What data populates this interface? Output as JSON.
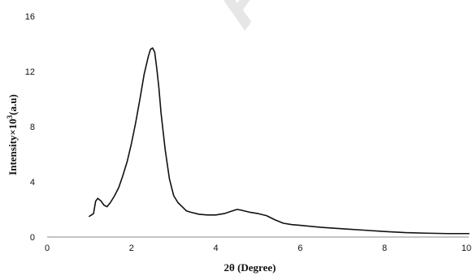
{
  "chart_data": {
    "type": "line",
    "title": "",
    "xlabel": "2θ (Degree)",
    "ylabel_main": "Intensity×10",
    "ylabel_sup": "3",
    "ylabel_unit": "(a.u)",
    "xlim": [
      0,
      10
    ],
    "ylim": [
      0,
      16
    ],
    "x_ticks": [
      0,
      2,
      4,
      6,
      8,
      10
    ],
    "y_ticks": [
      0,
      4,
      8,
      12,
      16
    ],
    "grid": false,
    "legend": "none",
    "line_color": "#111111",
    "x": [
      1.0,
      1.05,
      1.1,
      1.15,
      1.2,
      1.28,
      1.35,
      1.42,
      1.5,
      1.6,
      1.7,
      1.8,
      1.9,
      2.0,
      2.1,
      2.2,
      2.3,
      2.4,
      2.45,
      2.5,
      2.55,
      2.6,
      2.65,
      2.7,
      2.8,
      2.9,
      3.0,
      3.1,
      3.2,
      3.3,
      3.4,
      3.6,
      3.8,
      4.0,
      4.2,
      4.35,
      4.5,
      4.6,
      4.8,
      5.0,
      5.2,
      5.4,
      5.6,
      5.8,
      6.0,
      6.5,
      7.0,
      7.5,
      8.0,
      8.5,
      9.0,
      9.5,
      10.0
    ],
    "y": [
      1.5,
      1.6,
      1.7,
      2.6,
      2.8,
      2.6,
      2.3,
      2.2,
      2.5,
      3.0,
      3.6,
      4.5,
      5.5,
      6.8,
      8.3,
      10.0,
      11.8,
      13.1,
      13.6,
      13.7,
      13.4,
      12.2,
      10.8,
      9.0,
      6.3,
      4.2,
      3.0,
      2.5,
      2.2,
      1.9,
      1.8,
      1.65,
      1.6,
      1.6,
      1.7,
      1.85,
      2.0,
      1.95,
      1.8,
      1.7,
      1.55,
      1.25,
      1.0,
      0.9,
      0.85,
      0.7,
      0.6,
      0.5,
      0.4,
      0.32,
      0.28,
      0.25,
      0.25
    ]
  }
}
